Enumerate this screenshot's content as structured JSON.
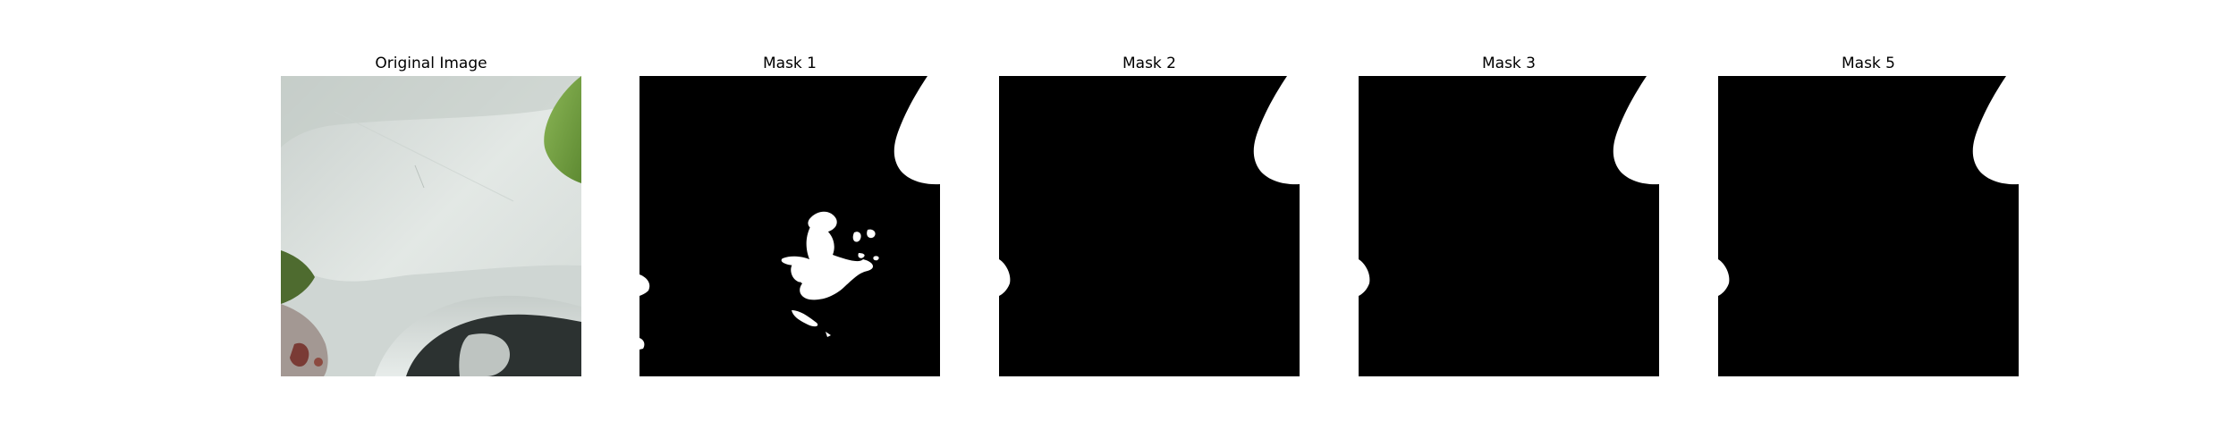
{
  "figure": {
    "panels": [
      {
        "title": "Original Image",
        "content": "photo"
      },
      {
        "title": "Mask 1",
        "content": "mask-detailed"
      },
      {
        "title": "Mask 2",
        "content": "mask-simple"
      },
      {
        "title": "Mask 3",
        "content": "mask-simple"
      },
      {
        "title": "Mask 5",
        "content": "mask-simple"
      }
    ]
  },
  "colors": {
    "mask_background": "#000000",
    "mask_foreground": "#ffffff",
    "photo_surface": "#d9dfdc",
    "photo_leaf": "#7ea84a",
    "photo_dark": "#2a2f2e"
  }
}
